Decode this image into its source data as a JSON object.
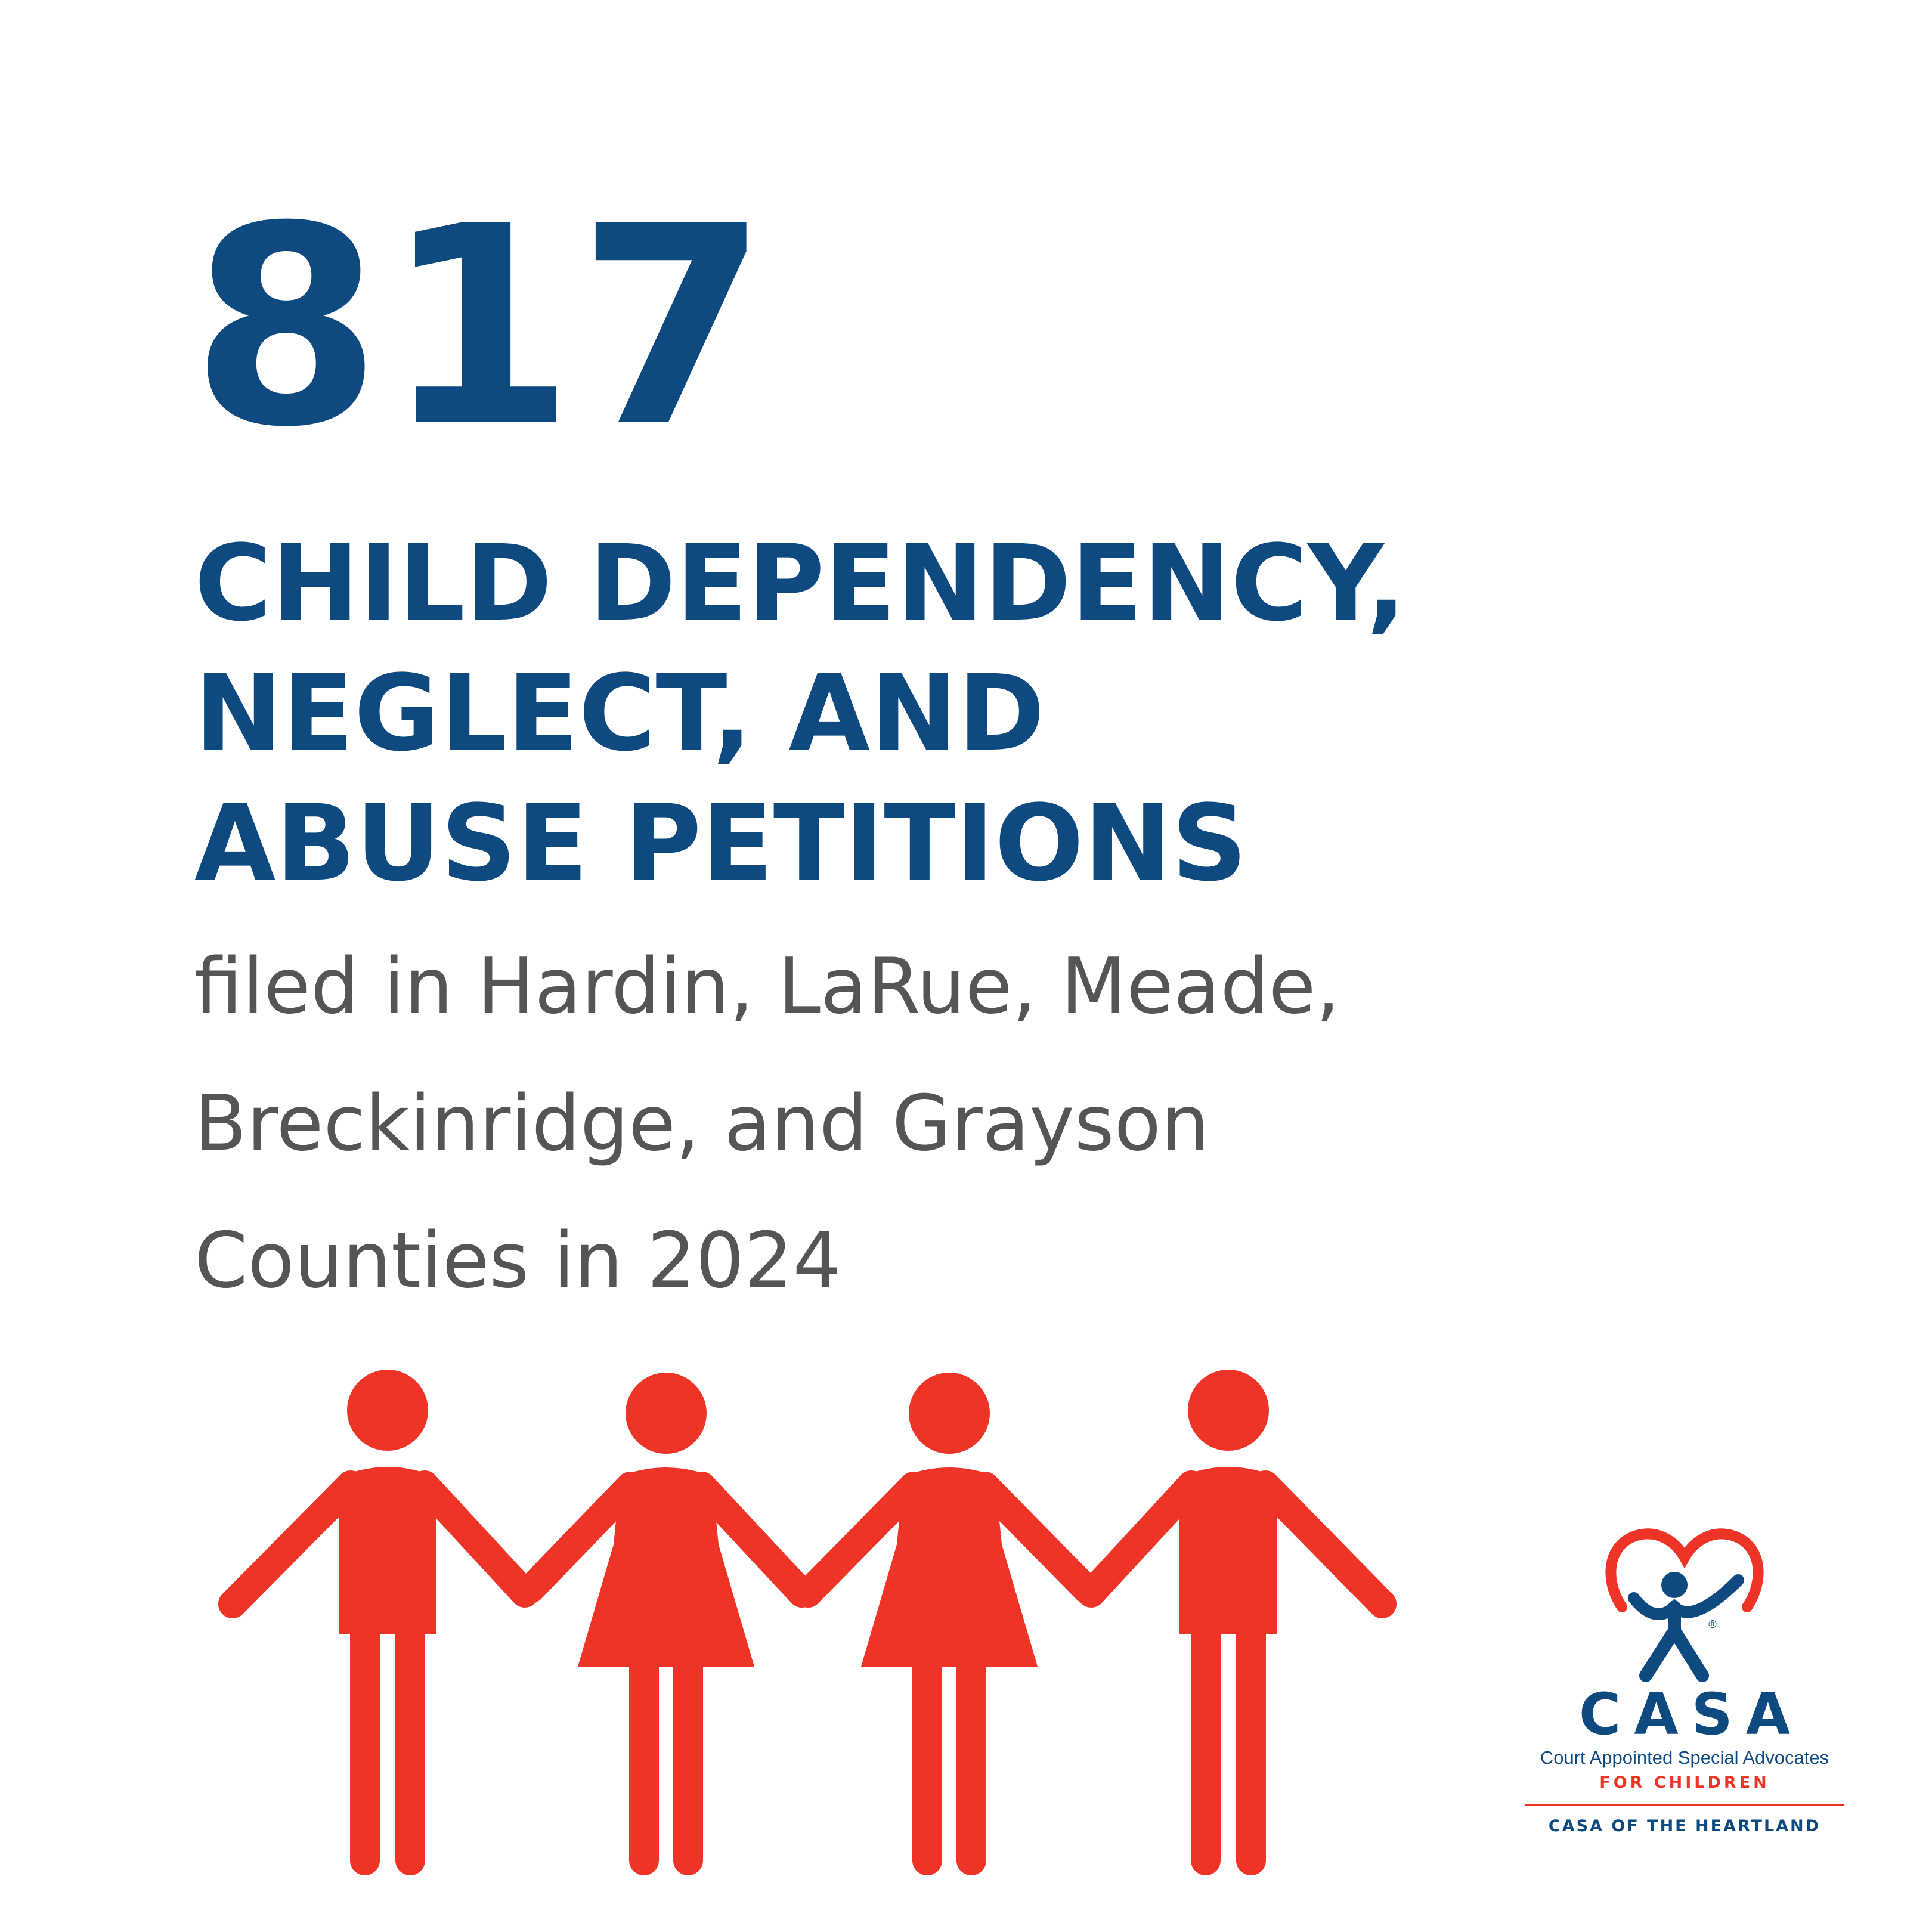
{
  "stat": {
    "number": "817",
    "headline_lines": [
      "CHILD DEPENDENCY,",
      "NEGLECT, AND",
      "ABUSE PETITIONS"
    ],
    "subtext_lines": [
      "filed in Hardin, LaRue, Meade,",
      "Breckinridge, and Grayson",
      "Counties in 2024"
    ]
  },
  "illustration": {
    "icon": "people-holding-hands-icon",
    "figures": [
      "boy",
      "girl",
      "girl",
      "boy"
    ],
    "color": "#ee3427"
  },
  "logo": {
    "icon": "casa-heart-figure-icon",
    "registered_mark": "®",
    "wordmark": "CASA",
    "full_name": "Court Appointed Special Advocates",
    "for_line": "FOR CHILDREN",
    "org_name": "CASA OF THE HEARTLAND"
  },
  "colors": {
    "primary_blue": "#0e4a80",
    "accent_red": "#ee3427",
    "body_gray": "#555555",
    "background": "#ffffff"
  }
}
